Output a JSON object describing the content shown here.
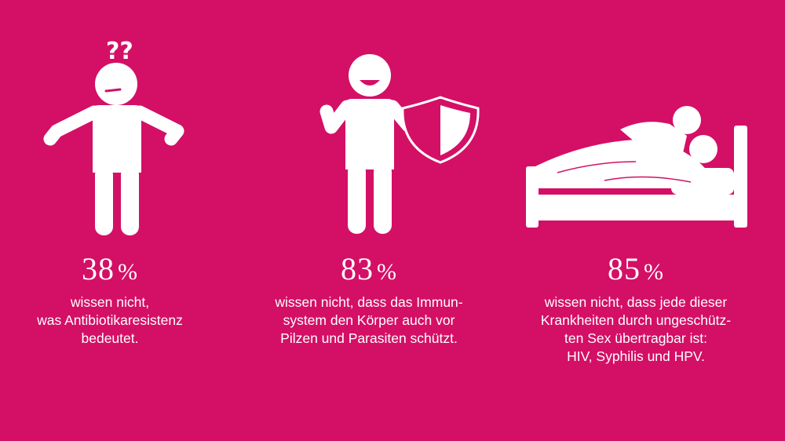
{
  "background_color": "#d40f66",
  "stats": [
    {
      "value": "38",
      "unit": "%",
      "icon": "shrugging-person-icon",
      "lines": [
        "wissen nicht,",
        "was Antibiotikaresistenz",
        "bedeutet."
      ]
    },
    {
      "value": "83",
      "unit": "%",
      "icon": "person-with-shield-icon",
      "lines": [
        "wissen nicht, dass das Immun-",
        "system den Körper auch vor",
        "Pilzen und Parasiten schützt."
      ]
    },
    {
      "value": "85",
      "unit": "%",
      "icon": "couple-in-bed-icon",
      "lines": [
        "wissen nicht, dass jede dieser",
        "Krankheiten durch ungeschütz-",
        "ten Sex übertragbar ist:",
        "HIV, Syphilis und HPV."
      ]
    }
  ],
  "question_marks": "??"
}
